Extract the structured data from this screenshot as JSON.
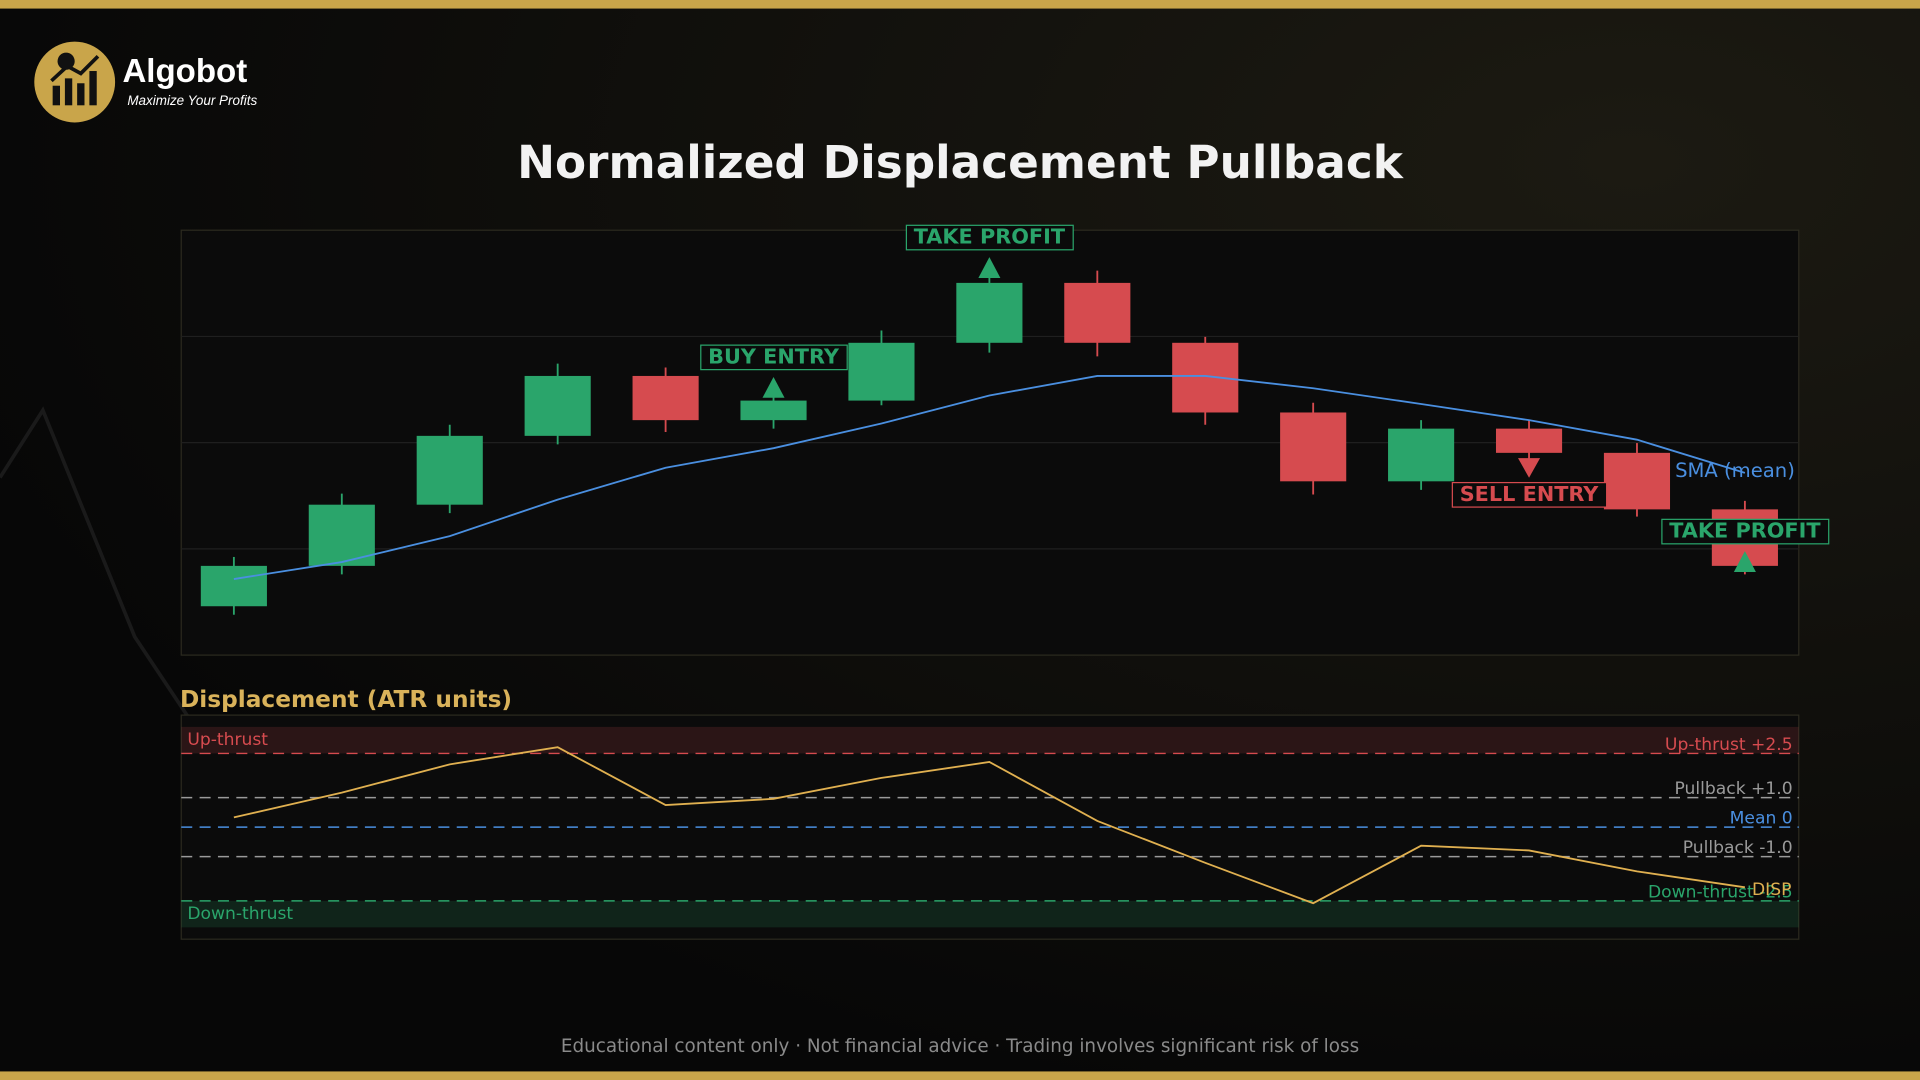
{
  "brand": {
    "name": "Algobot",
    "tagline": "Maximize Your Profits"
  },
  "footer": "Educational content only  ·  Not financial advice  ·  Trading involves significant risk of loss",
  "chart_data": [
    {
      "type": "candlestick",
      "title": "Normalized Displacement Pullback",
      "open": [
        11.5,
        21.0,
        35.4,
        51.6,
        65.7,
        55.3,
        59.9,
        73.5,
        87.6,
        73.5,
        57.1,
        40.9,
        53.3,
        47.6,
        34.3
      ],
      "high": [
        23.1,
        38.0,
        54.2,
        68.6,
        67.7,
        62.0,
        76.4,
        90.2,
        90.5,
        74.9,
        59.4,
        55.3,
        55.3,
        49.9,
        36.3
      ],
      "low": [
        9.5,
        19.0,
        33.4,
        49.6,
        52.5,
        53.3,
        58.8,
        71.2,
        70.3,
        54.2,
        37.8,
        38.9,
        45.5,
        32.6,
        19.0
      ],
      "close": [
        21.0,
        35.4,
        51.6,
        65.7,
        55.3,
        59.9,
        73.5,
        87.6,
        73.5,
        57.1,
        40.9,
        53.3,
        47.6,
        34.3,
        21.0
      ],
      "up_color": "#2aa56b",
      "down_color": "#d64b4f",
      "sma": {
        "name": "SMA (mean)",
        "color": "#4a8fe0",
        "values": [
          17.9,
          21.9,
          28.0,
          36.6,
          44.1,
          48.7,
          54.5,
          61.1,
          65.7,
          65.7,
          62.8,
          59.1,
          55.3,
          50.7,
          42.9
        ]
      },
      "ylim": [
        0,
        100
      ],
      "grid_lines": [
        25,
        50,
        75
      ],
      "annotations": [
        {
          "index": 7,
          "text": "TAKE PROFIT",
          "anchor": "high",
          "side": "above",
          "color": "#2aa56b"
        },
        {
          "index": 5,
          "text": "BUY ENTRY",
          "anchor": "high",
          "side": "above",
          "color": "#2aa56b"
        },
        {
          "index": 12,
          "text": "SELL ENTRY",
          "anchor": "low",
          "side": "below",
          "color": "#d64b4f"
        },
        {
          "index": 14,
          "text": "TAKE PROFIT",
          "anchor": "close",
          "side": "above",
          "color": "#2aa56b"
        }
      ]
    },
    {
      "type": "line",
      "title": "Displacement (ATR units)",
      "series": [
        {
          "name": "DISP",
          "color": "#e0b050",
          "values": [
            0.33,
            1.17,
            2.13,
            2.71,
            0.75,
            0.96,
            1.67,
            2.21,
            0.21,
            -1.21,
            -2.58,
            -0.63,
            -0.79,
            -1.5,
            -2.04
          ]
        }
      ],
      "ylim": [
        -3.8,
        3.8
      ],
      "zones": [
        {
          "label": "Up-thrust",
          "from": 2.5,
          "to": 3.4,
          "color": "#d64b4f"
        },
        {
          "label": "Down-thrust",
          "from": -2.5,
          "to": -3.4,
          "color": "#2aa56b"
        }
      ],
      "reference_lines": [
        {
          "value": 2.5,
          "label": "Up-thrust +2.5",
          "color": "#d64b4f"
        },
        {
          "value": 1.0,
          "label": "Pullback +1.0",
          "color": "#9a9a9a"
        },
        {
          "value": 0,
          "label": "Mean 0",
          "color": "#4a8fe0"
        },
        {
          "value": -1.0,
          "label": "Pullback -1.0",
          "color": "#9a9a9a"
        },
        {
          "value": -2.5,
          "label": "Down-thrust -2.5",
          "color": "#2aa56b"
        }
      ]
    }
  ]
}
